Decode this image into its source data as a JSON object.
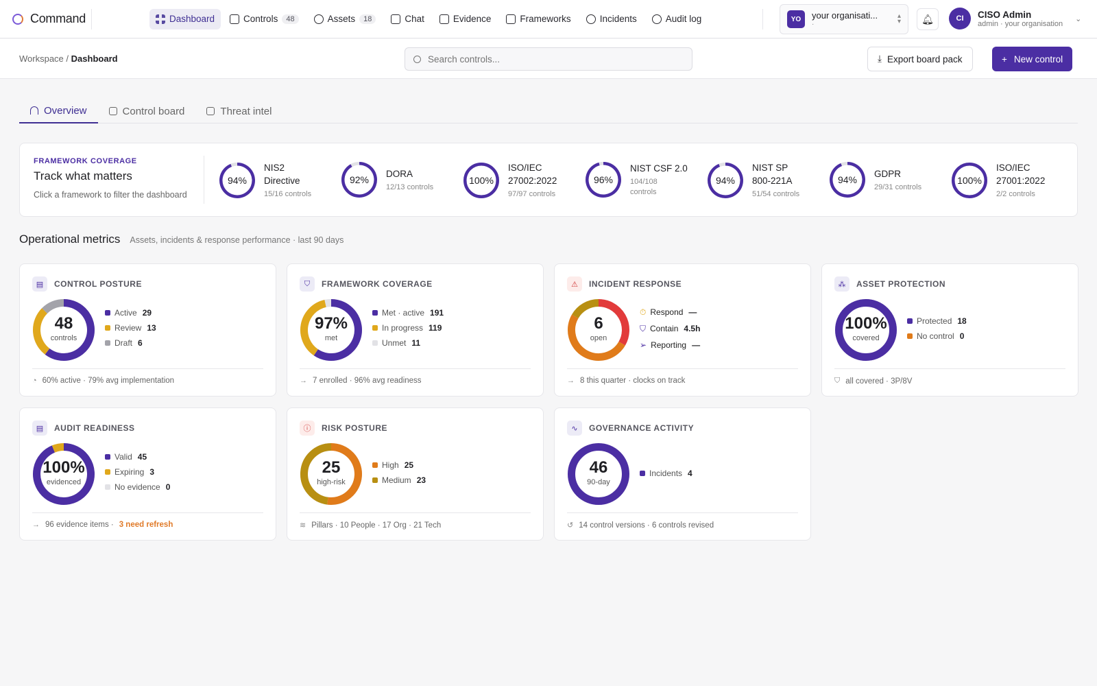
{
  "app": {
    "name": "Command"
  },
  "nav": [
    {
      "label": "Dashboard",
      "icon": "grid-icon",
      "active": true
    },
    {
      "label": "Controls",
      "badge": "48",
      "icon": "file-icon"
    },
    {
      "label": "Assets",
      "badge": "18",
      "icon": "cubes-icon"
    },
    {
      "label": "Chat",
      "icon": "chat-icon"
    },
    {
      "label": "Evidence",
      "icon": "book-icon"
    },
    {
      "label": "Frameworks",
      "icon": "checklist-icon"
    },
    {
      "label": "Incidents",
      "icon": "siren-icon"
    },
    {
      "label": "Audit log",
      "icon": "history-icon"
    }
  ],
  "org": {
    "avatar": "YO",
    "name": "your organisati...",
    "sub": "·"
  },
  "user": {
    "avatar": "CI",
    "name": "CISO Admin",
    "sub": "admin · your organisation"
  },
  "breadcrumb": {
    "root": "Workspace",
    "sep": "/",
    "current": "Dashboard"
  },
  "search": {
    "placeholder": "Search controls..."
  },
  "actions": {
    "export": "Export board pack",
    "new": "New control"
  },
  "tabs": [
    {
      "label": "Overview",
      "active": true
    },
    {
      "label": "Control board"
    },
    {
      "label": "Threat intel"
    }
  ],
  "framework_coverage": {
    "kicker": "FRAMEWORK COVERAGE",
    "title": "Track what matters",
    "subtitle": "Click a framework to filter the dashboard",
    "items": [
      {
        "pct": "94%",
        "value": 0.94,
        "name_1": "NIS2",
        "name_2": "Directive",
        "count": "15/16 controls",
        "count_2": ""
      },
      {
        "pct": "92%",
        "value": 0.92,
        "name_1": "DORA",
        "name_2": "",
        "count": "12/13 controls",
        "count_2": ""
      },
      {
        "pct": "100%",
        "value": 1.0,
        "name_1": "ISO/IEC",
        "name_2": "27002:2022",
        "count": "97/97 controls",
        "count_2": ""
      },
      {
        "pct": "96%",
        "value": 0.96,
        "name_1": "NIST CSF 2.0",
        "name_2": "",
        "count": "104/108",
        "count_2": "controls"
      },
      {
        "pct": "94%",
        "value": 0.94,
        "name_1": "NIST SP",
        "name_2": "800-221A",
        "count": "51/54 controls",
        "count_2": ""
      },
      {
        "pct": "94%",
        "value": 0.94,
        "name_1": "GDPR",
        "name_2": "",
        "count": "29/31 controls",
        "count_2": ""
      },
      {
        "pct": "100%",
        "value": 1.0,
        "name_1": "ISO/IEC",
        "name_2": "27001:2022",
        "count": "2/2 controls",
        "count_2": ""
      }
    ]
  },
  "operational": {
    "title": "Operational metrics",
    "subtitle": "Assets, incidents & response performance · last 90 days"
  },
  "colors": {
    "purple": "#4b2ea3",
    "amber": "#e0a81c",
    "gray": "#a3a3aa",
    "light": "#e2e2e6",
    "orange": "#e07b1a",
    "red": "#e23b3b",
    "olive": "#b88f12"
  },
  "cards": {
    "control_posture": {
      "title": "CONTROL POSTURE",
      "value": "48",
      "unit": "controls",
      "legend": [
        {
          "label": "Active",
          "value": "29",
          "n": 29,
          "color": "#4b2ea3"
        },
        {
          "label": "Review",
          "value": "13",
          "n": 13,
          "color": "#e0a81c"
        },
        {
          "label": "Draft",
          "value": "6",
          "n": 6,
          "color": "#a3a3aa"
        }
      ],
      "footer": "60% active · 79% avg implementation"
    },
    "framework_coverage": {
      "title": "FRAMEWORK COVERAGE",
      "value": "97%",
      "unit": "met",
      "legend": [
        {
          "label": "Met · active",
          "value": "191",
          "n": 191,
          "color": "#4b2ea3"
        },
        {
          "label": "In progress",
          "value": "119",
          "n": 119,
          "color": "#e0a81c"
        },
        {
          "label": "Unmet",
          "value": "11",
          "n": 11,
          "color": "#e2e2e6"
        }
      ],
      "footer": "7 enrolled · 96% avg readiness"
    },
    "incident_response": {
      "title": "INCIDENT RESPONSE",
      "value": "6",
      "unit": "open",
      "segments": [
        {
          "n": 2,
          "color": "#e23b3b"
        },
        {
          "n": 3,
          "color": "#e07b1a"
        },
        {
          "n": 1,
          "color": "#b88f12"
        }
      ],
      "rows": [
        {
          "label": "Respond",
          "value": "—"
        },
        {
          "label": "Contain",
          "value": "4.5h"
        },
        {
          "label": "Reporting",
          "value": "—"
        }
      ],
      "footer": "8 this quarter · clocks on track"
    },
    "asset_protection": {
      "title": "ASSET PROTECTION",
      "value": "100%",
      "unit": "covered",
      "legend": [
        {
          "label": "Protected",
          "value": "18",
          "n": 18,
          "color": "#4b2ea3"
        },
        {
          "label": "No control",
          "value": "0",
          "n": 0,
          "color": "#e07b1a"
        }
      ],
      "footer": "all covered · 3P/8V"
    },
    "audit_readiness": {
      "title": "AUDIT READINESS",
      "value": "100%",
      "unit": "evidenced",
      "legend": [
        {
          "label": "Valid",
          "value": "45",
          "n": 45,
          "color": "#4b2ea3"
        },
        {
          "label": "Expiring",
          "value": "3",
          "n": 3,
          "color": "#e0a81c"
        },
        {
          "label": "No evidence",
          "value": "0",
          "n": 0,
          "color": "#e2e2e6"
        }
      ],
      "footer": "96 evidence items ·",
      "footer_warn": "3 need refresh"
    },
    "risk_posture": {
      "title": "RISK POSTURE",
      "value": "25",
      "unit": "high-risk",
      "legend": [
        {
          "label": "High",
          "value": "25",
          "n": 25,
          "color": "#e07b1a"
        },
        {
          "label": "Medium",
          "value": "23",
          "n": 23,
          "color": "#b88f12"
        }
      ],
      "footer": "Pillars · 10 People · 17 Org · 21 Tech"
    },
    "governance_activity": {
      "title": "GOVERNANCE ACTIVITY",
      "value": "46",
      "unit": "90-day",
      "legend": [
        {
          "label": "Incidents",
          "value": "4",
          "n": 4,
          "color": "#4b2ea3"
        }
      ],
      "footer": "14 control versions · 6 controls revised"
    }
  }
}
